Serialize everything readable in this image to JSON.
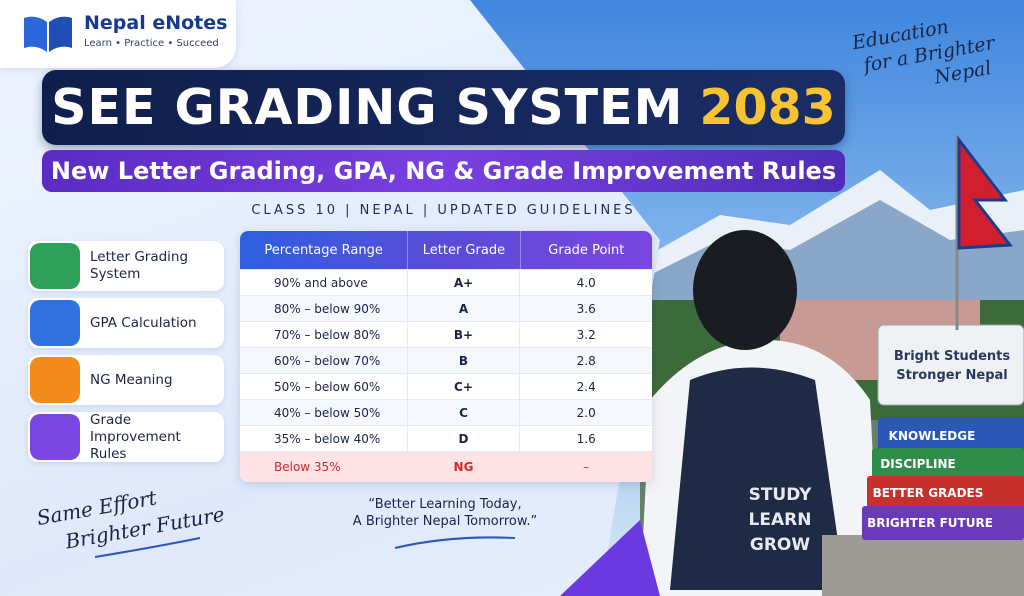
{
  "brand": {
    "name": "Nepal eNotes",
    "tagline": "Learn • Practice • Succeed"
  },
  "slogan_top": [
    "Education",
    "for a Brighter",
    "Nepal"
  ],
  "header": {
    "title": "SEE GRADING SYSTEM",
    "year": "2083",
    "subtitle": "New Letter Grading, GPA, NG & Grade Improvement Rules",
    "meta": "CLASS 10 | NEPAL | UPDATED GUIDELINES"
  },
  "features": [
    "Letter Grading System",
    "GPA Calculation",
    "NG Meaning",
    "Grade Improvement Rules"
  ],
  "table": {
    "columns": [
      "Percentage Range",
      "Letter Grade",
      "Grade Point"
    ],
    "rows": [
      [
        "90% and above",
        "A+",
        "4.0"
      ],
      [
        "80% – below 90%",
        "A",
        "3.6"
      ],
      [
        "70% – below 80%",
        "B+",
        "3.2"
      ],
      [
        "60% – below 70%",
        "B",
        "2.8"
      ],
      [
        "50% – below 60%",
        "C+",
        "2.4"
      ],
      [
        "40% – below 50%",
        "C",
        "2.0"
      ],
      [
        "35% – below 40%",
        "D",
        "1.6"
      ],
      [
        "Below 35%",
        "NG",
        "–"
      ]
    ]
  },
  "slogan_bottom": [
    "Same Effort",
    "Brighter Future"
  ],
  "quote": [
    "“Better Learning Today,",
    "A Brighter Nepal Tomorrow.”"
  ],
  "photo": {
    "sign": [
      "Bright Students",
      "Stronger Nepal"
    ],
    "backpack": [
      "STUDY",
      "LEARN",
      "GROW"
    ],
    "books": [
      "KNOWLEDGE",
      "DISCIPLINE",
      "BETTER GRADES",
      "BRIGHTER FUTURE"
    ]
  }
}
